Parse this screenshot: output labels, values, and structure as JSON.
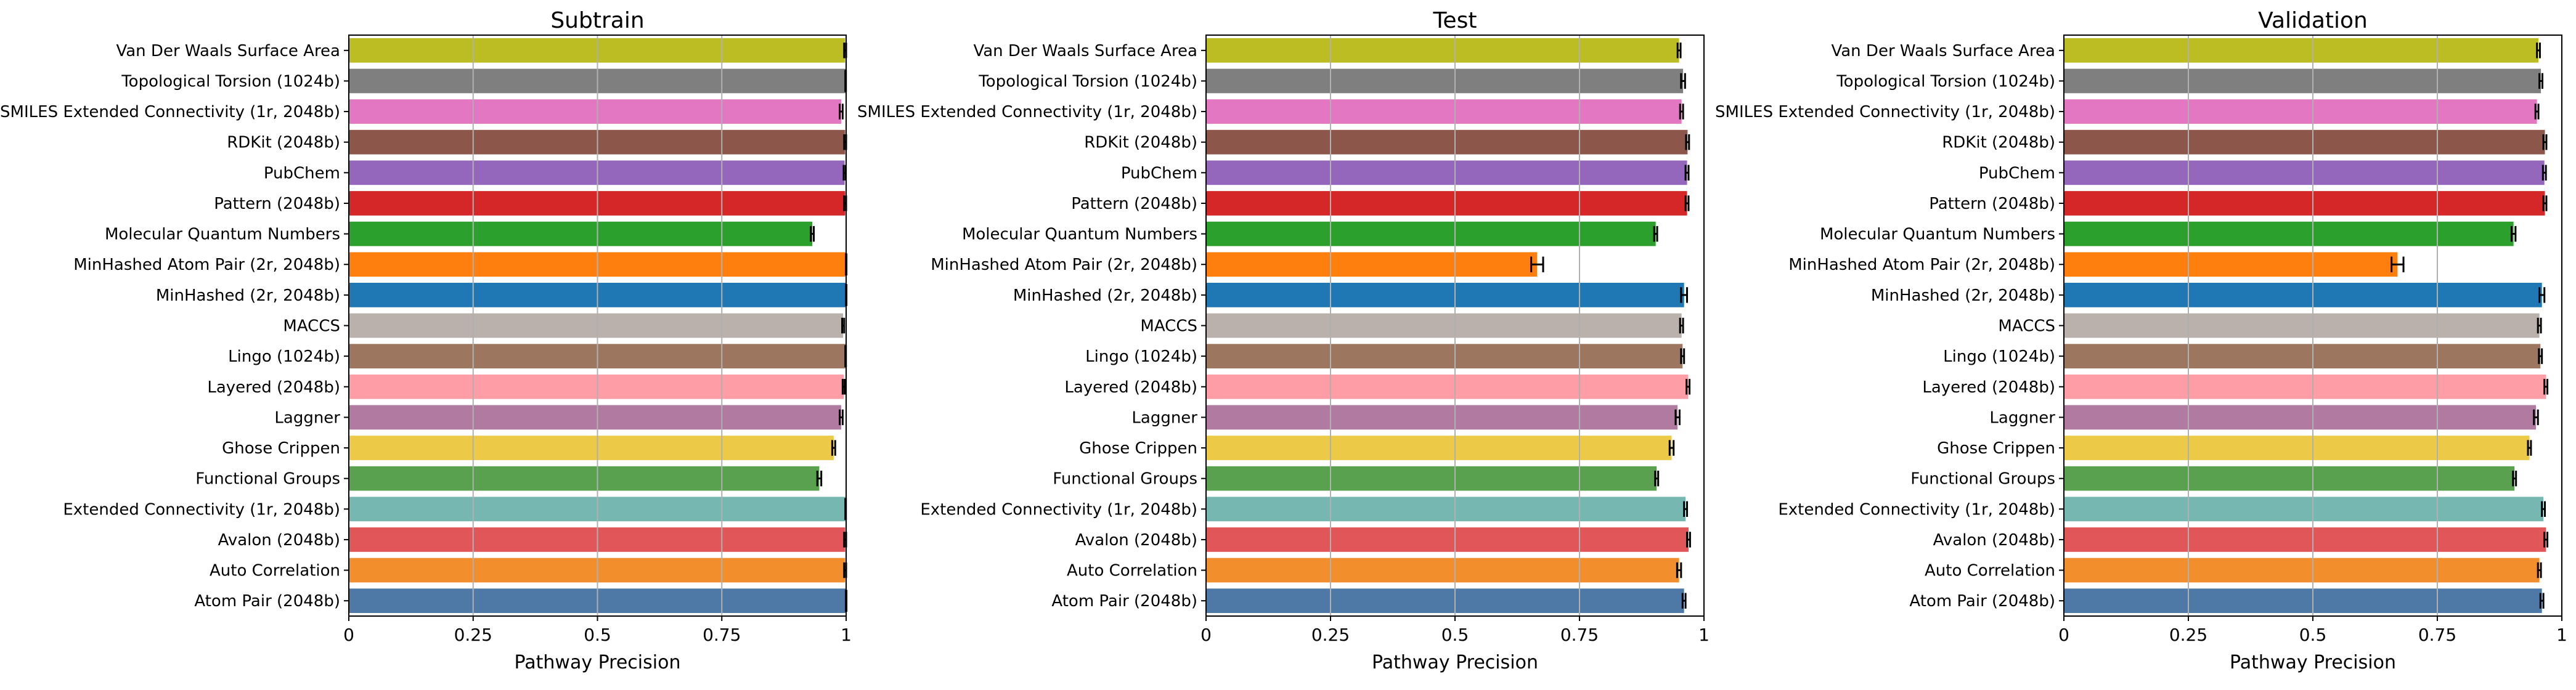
{
  "chart_data": [
    {
      "type": "bar",
      "orientation": "horizontal",
      "title": "Subtrain",
      "xlabel": "Pathway Precision",
      "ylabel": "",
      "xlim": [
        0,
        1
      ],
      "xticks": [
        "0",
        "0.25",
        "0.5",
        "0.75",
        "1"
      ],
      "grid": "x",
      "categories": [
        "Van Der Waals Surface Area",
        "Topological Torsion (1024b)",
        "SMILES Extended Connectivity (1r, 2048b)",
        "RDKit (2048b)",
        "PubChem",
        "Pattern (2048b)",
        "Molecular Quantum Numbers",
        "MinHashed Atom Pair (2r, 2048b)",
        "MinHashed (2r, 2048b)",
        "MACCS",
        "Lingo (1024b)",
        "Layered (2048b)",
        "Laggner",
        "Ghose Crippen",
        "Functional Groups",
        "Extended Connectivity (1r, 2048b)",
        "Avalon (2048b)",
        "Auto Correlation",
        "Atom Pair (2048b)"
      ],
      "values": [
        0.998,
        0.999,
        0.99,
        0.998,
        0.997,
        0.998,
        0.932,
        1.0,
        1.0,
        0.994,
        0.999,
        0.995,
        0.99,
        0.975,
        0.946,
        0.999,
        0.998,
        0.998,
        1.0
      ],
      "errors": [
        0.002,
        0.001,
        0.003,
        0.002,
        0.002,
        0.002,
        0.003,
        0.0,
        0.0,
        0.002,
        0.001,
        0.002,
        0.003,
        0.003,
        0.004,
        0.001,
        0.002,
        0.002,
        0.0
      ]
    },
    {
      "type": "bar",
      "orientation": "horizontal",
      "title": "Test",
      "xlabel": "Pathway Precision",
      "ylabel": "",
      "xlim": [
        0,
        1
      ],
      "xticks": [
        "0",
        "0.25",
        "0.5",
        "0.75",
        "1"
      ],
      "grid": "x",
      "categories": [
        "Van Der Waals Surface Area",
        "Topological Torsion (1024b)",
        "SMILES Extended Connectivity (1r, 2048b)",
        "RDKit (2048b)",
        "PubChem",
        "Pattern (2048b)",
        "Molecular Quantum Numbers",
        "MinHashed Atom Pair (2r, 2048b)",
        "MinHashed (2r, 2048b)",
        "MACCS",
        "Lingo (1024b)",
        "Layered (2048b)",
        "Laggner",
        "Ghose Crippen",
        "Functional Groups",
        "Extended Connectivity (1r, 2048b)",
        "Avalon (2048b)",
        "Auto Correlation",
        "Atom Pair (2048b)"
      ],
      "values": [
        0.95,
        0.958,
        0.955,
        0.967,
        0.966,
        0.966,
        0.903,
        0.665,
        0.96,
        0.955,
        0.957,
        0.968,
        0.947,
        0.935,
        0.905,
        0.963,
        0.969,
        0.95,
        0.96
      ],
      "errors": [
        0.003,
        0.004,
        0.003,
        0.003,
        0.003,
        0.003,
        0.003,
        0.012,
        0.006,
        0.003,
        0.003,
        0.003,
        0.004,
        0.004,
        0.003,
        0.003,
        0.003,
        0.004,
        0.003
      ]
    },
    {
      "type": "bar",
      "orientation": "horizontal",
      "title": "Validation",
      "xlabel": "Pathway Precision",
      "ylabel": "",
      "xlim": [
        0,
        1
      ],
      "xticks": [
        "0",
        "0.25",
        "0.5",
        "0.75",
        "1"
      ],
      "grid": "x",
      "categories": [
        "Van Der Waals Surface Area",
        "Topological Torsion (1024b)",
        "SMILES Extended Connectivity (1r, 2048b)",
        "RDKit (2048b)",
        "PubChem",
        "Pattern (2048b)",
        "Molecular Quantum Numbers",
        "MinHashed Atom Pair (2r, 2048b)",
        "MinHashed (2r, 2048b)",
        "MACCS",
        "Lingo (1024b)",
        "Layered (2048b)",
        "Laggner",
        "Ghose Crippen",
        "Functional Groups",
        "Extended Connectivity (1r, 2048b)",
        "Avalon (2048b)",
        "Auto Correlation",
        "Atom Pair (2048b)"
      ],
      "values": [
        0.953,
        0.958,
        0.95,
        0.966,
        0.965,
        0.966,
        0.903,
        0.67,
        0.96,
        0.955,
        0.957,
        0.968,
        0.948,
        0.935,
        0.905,
        0.963,
        0.968,
        0.955,
        0.96
      ],
      "errors": [
        0.003,
        0.003,
        0.003,
        0.003,
        0.003,
        0.003,
        0.004,
        0.012,
        0.005,
        0.003,
        0.003,
        0.003,
        0.004,
        0.003,
        0.003,
        0.003,
        0.003,
        0.003,
        0.003
      ]
    }
  ],
  "bar_colors": [
    "#bcbd22",
    "#7f7f7f",
    "#e377c2",
    "#8c564b",
    "#9467bd",
    "#d62728",
    "#2ca02c",
    "#ff7f0e",
    "#1f77b4",
    "#bab0ac",
    "#9d7660",
    "#ff9da7",
    "#b07aa1",
    "#edc948",
    "#59a14f",
    "#76b7b2",
    "#e15759",
    "#f28e2b",
    "#4e79a7"
  ],
  "grid_color": "#b0b0b0"
}
